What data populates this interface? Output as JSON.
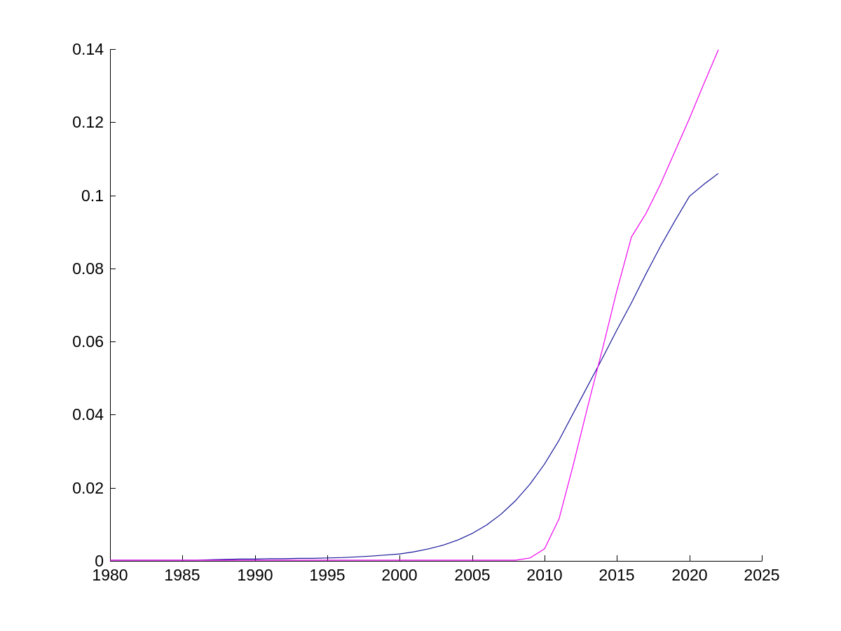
{
  "figure": {
    "background_color": "#ffffff",
    "axis_color": "#000000"
  },
  "chart_data": {
    "type": "line",
    "title": "",
    "xlabel": "",
    "ylabel": "",
    "grid": false,
    "legend": "none",
    "xlim": [
      1980,
      2025
    ],
    "ylim": [
      0,
      0.14
    ],
    "xticks": [
      1980,
      1985,
      1990,
      1995,
      2000,
      2005,
      2010,
      2015,
      2020,
      2025
    ],
    "xtick_labels": [
      "1980",
      "1985",
      "1990",
      "1995",
      "2000",
      "2005",
      "2010",
      "2015",
      "2020",
      "2025"
    ],
    "yticks": [
      0,
      0.02,
      0.04,
      0.06,
      0.08,
      0.1,
      0.12,
      0.14
    ],
    "ytick_labels": [
      "0",
      "0.02",
      "0.04",
      "0.06",
      "0.08",
      "0.1",
      "0.12",
      "0.14"
    ],
    "x": [
      1980,
      1981,
      1982,
      1983,
      1984,
      1985,
      1986,
      1987,
      1988,
      1989,
      1990,
      1991,
      1992,
      1993,
      1994,
      1995,
      1996,
      1997,
      1998,
      1999,
      2000,
      2001,
      2002,
      2003,
      2004,
      2005,
      2006,
      2007,
      2008,
      2009,
      2010,
      2011,
      2012,
      2013,
      2014,
      2015,
      2016,
      2017,
      2018,
      2019,
      2020,
      2021,
      2022
    ],
    "series": [
      {
        "name": "blue-line",
        "color": "#16169a",
        "values": [
          0.0002,
          0.0002,
          0.0002,
          0.0002,
          0.0002,
          0.0002,
          0.0002,
          0.0003,
          0.0004,
          0.0005,
          0.0005,
          0.0006,
          0.0006,
          0.0007,
          0.0007,
          0.0008,
          0.0009,
          0.0011,
          0.0013,
          0.0016,
          0.0019,
          0.0025,
          0.0033,
          0.0043,
          0.0057,
          0.0075,
          0.0098,
          0.0128,
          0.0165,
          0.021,
          0.0265,
          0.033,
          0.0405,
          0.048,
          0.0555,
          0.0632,
          0.0706,
          0.0785,
          0.086,
          0.093,
          0.0997,
          0.103,
          0.106
        ]
      },
      {
        "name": "magenta-line",
        "color": "#ee00ee",
        "values": [
          0.0002,
          0.0002,
          0.0002,
          0.0002,
          0.0002,
          0.0002,
          0.0002,
          0.0002,
          0.0002,
          0.0002,
          0.0002,
          0.0002,
          0.0002,
          0.0002,
          0.0002,
          0.0002,
          0.0002,
          0.0002,
          0.0002,
          0.0002,
          0.0002,
          0.0002,
          0.0002,
          0.0002,
          0.0002,
          0.0002,
          0.0002,
          0.0002,
          0.0002,
          0.0008,
          0.0033,
          0.0115,
          0.0265,
          0.0425,
          0.058,
          0.074,
          0.0886,
          0.095,
          0.103,
          0.112,
          0.121,
          0.1305,
          0.1398
        ]
      }
    ]
  }
}
